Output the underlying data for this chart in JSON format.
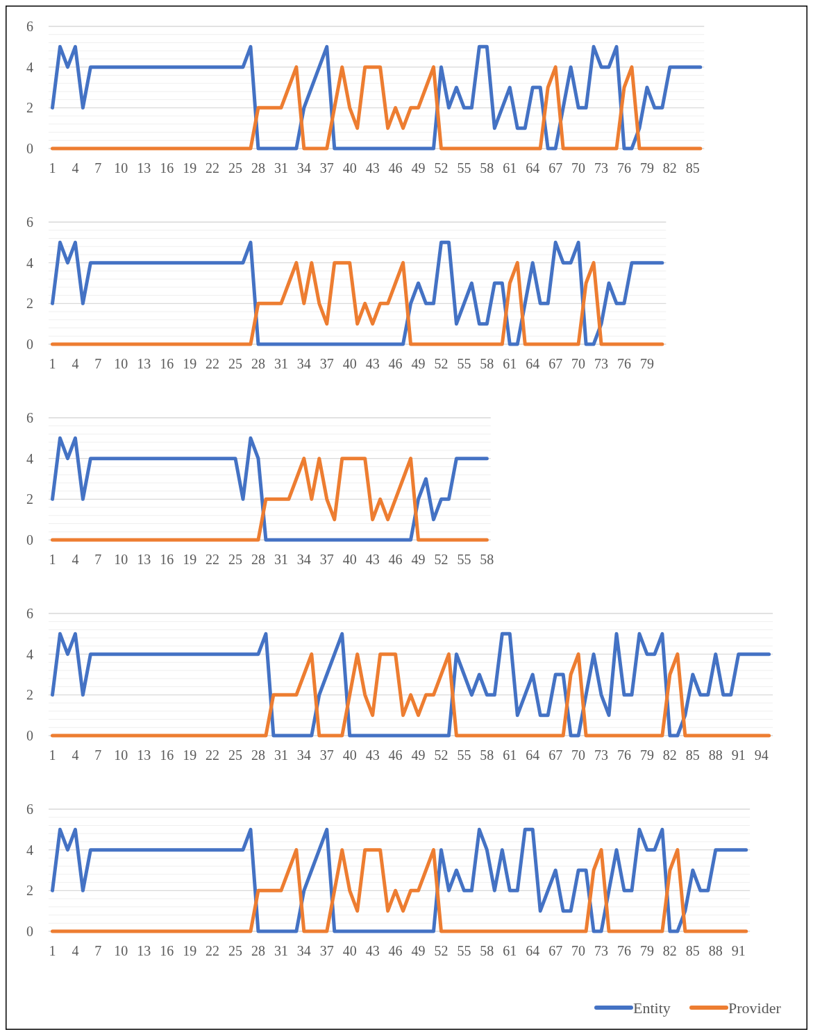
{
  "chart_data": [
    {
      "type": "line",
      "ylim": [
        0,
        6
      ],
      "yticks": [
        0,
        {
          "value": 0.4,
          "label": null
        },
        {
          "value": 0.8,
          "label": null
        },
        {
          "value": 1.2,
          "label": null
        },
        {
          "value": 1.6,
          "label": null
        },
        2,
        {
          "value": 2.4,
          "label": null
        },
        {
          "value": 2.8,
          "label": null
        },
        {
          "value": 3.2,
          "label": null
        },
        {
          "value": 3.6,
          "label": null
        },
        4,
        {
          "value": 4.4,
          "label": null
        },
        {
          "value": 4.8,
          "label": null
        },
        {
          "value": 5.2,
          "label": null
        },
        {
          "value": 5.6,
          "label": null
        },
        6
      ],
      "grid": "y",
      "categories": [
        "1",
        null,
        null,
        "4",
        null,
        null,
        "7",
        null,
        null,
        "10",
        null,
        null,
        "13",
        null,
        null,
        "16",
        null,
        null,
        "19",
        null,
        null,
        "22",
        null,
        null,
        "25",
        null,
        null,
        "28",
        null,
        null,
        "31",
        null,
        null,
        "34",
        null,
        null,
        "37",
        null,
        null,
        "40",
        null,
        null,
        "43",
        null,
        null,
        "46",
        null,
        null,
        "49",
        null,
        null,
        "52",
        null,
        null,
        "55",
        null,
        null,
        "58",
        null,
        null,
        "61",
        null,
        null,
        "64",
        null,
        null,
        "67",
        null,
        null,
        "70",
        null,
        null,
        "73",
        null,
        null,
        "76",
        null,
        null,
        "79",
        null,
        null,
        "82",
        null,
        null,
        "85",
        null
      ],
      "series": [
        {
          "color": "#4472c4",
          "values": [
            2,
            5,
            4,
            5,
            2,
            4,
            4,
            4,
            4,
            4,
            4,
            4,
            4,
            4,
            4,
            4,
            4,
            4,
            4,
            4,
            4,
            4,
            4,
            4,
            4,
            4,
            5,
            0,
            0,
            0,
            0,
            0,
            0,
            2,
            3,
            4,
            5,
            0,
            0,
            0,
            0,
            0,
            0,
            0,
            0,
            0,
            0,
            0,
            0,
            0,
            0,
            4,
            2,
            3,
            2,
            2,
            5,
            5,
            1,
            2,
            3,
            1,
            1,
            3,
            3,
            0,
            0,
            2,
            4,
            2,
            2,
            5,
            4,
            4,
            5,
            0,
            0,
            1,
            3,
            2,
            2,
            4,
            4,
            4,
            4,
            4
          ]
        },
        {
          "color": "#ed7d31",
          "values": [
            0,
            0,
            0,
            0,
            0,
            0,
            0,
            0,
            0,
            0,
            0,
            0,
            0,
            0,
            0,
            0,
            0,
            0,
            0,
            0,
            0,
            0,
            0,
            0,
            0,
            0,
            0,
            2,
            2,
            2,
            2,
            3,
            4,
            0,
            0,
            0,
            0,
            2,
            4,
            2,
            1,
            4,
            4,
            4,
            1,
            2,
            1,
            2,
            2,
            3,
            4,
            0,
            0,
            0,
            0,
            0,
            0,
            0,
            0,
            0,
            0,
            0,
            0,
            0,
            0,
            3,
            4,
            0,
            0,
            0,
            0,
            0,
            0,
            0,
            0,
            3,
            4,
            0,
            0,
            0,
            0,
            0,
            0,
            0,
            0,
            0
          ]
        }
      ]
    },
    {
      "type": "line",
      "ylim": [
        0,
        6
      ],
      "yticks": [
        0,
        {
          "value": 0.4,
          "label": null
        },
        {
          "value": 0.8,
          "label": null
        },
        {
          "value": 1.2,
          "label": null
        },
        {
          "value": 1.6,
          "label": null
        },
        2,
        {
          "value": 2.4,
          "label": null
        },
        {
          "value": 2.8,
          "label": null
        },
        {
          "value": 3.2,
          "label": null
        },
        {
          "value": 3.6,
          "label": null
        },
        4,
        {
          "value": 4.4,
          "label": null
        },
        {
          "value": 4.8,
          "label": null
        },
        {
          "value": 5.2,
          "label": null
        },
        {
          "value": 5.6,
          "label": null
        },
        6
      ],
      "grid": "y",
      "categories": [
        "1",
        null,
        null,
        "4",
        null,
        null,
        "7",
        null,
        null,
        "10",
        null,
        null,
        "13",
        null,
        null,
        "16",
        null,
        null,
        "19",
        null,
        null,
        "22",
        null,
        null,
        "25",
        null,
        null,
        "28",
        null,
        null,
        "31",
        null,
        null,
        "34",
        null,
        null,
        "37",
        null,
        null,
        "40",
        null,
        null,
        "43",
        null,
        null,
        "46",
        null,
        null,
        "49",
        null,
        null,
        "52",
        null,
        null,
        "55",
        null,
        null,
        "58",
        null,
        null,
        "61",
        null,
        null,
        "64",
        null,
        null,
        "67",
        null,
        null,
        "70",
        null,
        null,
        "73",
        null,
        null,
        "76",
        null,
        null,
        "79",
        null,
        null
      ],
      "series": [
        {
          "color": "#4472c4",
          "values": [
            2,
            5,
            4,
            5,
            2,
            4,
            4,
            4,
            4,
            4,
            4,
            4,
            4,
            4,
            4,
            4,
            4,
            4,
            4,
            4,
            4,
            4,
            4,
            4,
            4,
            4,
            5,
            0,
            0,
            0,
            0,
            0,
            0,
            0,
            0,
            0,
            0,
            0,
            0,
            0,
            0,
            0,
            0,
            0,
            0,
            0,
            0,
            2,
            3,
            2,
            2,
            5,
            5,
            1,
            2,
            3,
            1,
            1,
            3,
            3,
            0,
            0,
            2,
            4,
            2,
            2,
            5,
            4,
            4,
            5,
            0,
            0,
            1,
            3,
            2,
            2,
            4,
            4,
            4,
            4,
            4
          ]
        },
        {
          "color": "#ed7d31",
          "values": [
            0,
            0,
            0,
            0,
            0,
            0,
            0,
            0,
            0,
            0,
            0,
            0,
            0,
            0,
            0,
            0,
            0,
            0,
            0,
            0,
            0,
            0,
            0,
            0,
            0,
            0,
            0,
            2,
            2,
            2,
            2,
            3,
            4,
            2,
            4,
            2,
            1,
            4,
            4,
            4,
            1,
            2,
            1,
            2,
            2,
            3,
            4,
            0,
            0,
            0,
            0,
            0,
            0,
            0,
            0,
            0,
            0,
            0,
            0,
            0,
            3,
            4,
            0,
            0,
            0,
            0,
            0,
            0,
            0,
            0,
            3,
            4,
            0,
            0,
            0,
            0,
            0,
            0,
            0,
            0,
            0
          ]
        }
      ]
    },
    {
      "type": "line",
      "ylim": [
        0,
        6
      ],
      "yticks": [
        0,
        {
          "value": 0.4,
          "label": null
        },
        {
          "value": 0.8,
          "label": null
        },
        {
          "value": 1.2,
          "label": null
        },
        {
          "value": 1.6,
          "label": null
        },
        2,
        {
          "value": 2.4,
          "label": null
        },
        {
          "value": 2.8,
          "label": null
        },
        {
          "value": 3.2,
          "label": null
        },
        {
          "value": 3.6,
          "label": null
        },
        4,
        {
          "value": 4.4,
          "label": null
        },
        {
          "value": 4.8,
          "label": null
        },
        {
          "value": 5.2,
          "label": null
        },
        {
          "value": 5.6,
          "label": null
        },
        6
      ],
      "grid": "y",
      "categories": [
        "1",
        null,
        null,
        "4",
        null,
        null,
        "7",
        null,
        null,
        "10",
        null,
        null,
        "13",
        null,
        null,
        "16",
        null,
        null,
        "19",
        null,
        null,
        "22",
        null,
        null,
        "25",
        null,
        null,
        "28",
        null,
        null,
        "31",
        null,
        null,
        "34",
        null,
        null,
        "37",
        null,
        null,
        "40",
        null,
        null,
        "43",
        null,
        null,
        "46",
        null,
        null,
        "49",
        null,
        null,
        "52",
        null,
        null,
        "55",
        null,
        null,
        "58"
      ],
      "series": [
        {
          "color": "#4472c4",
          "values": [
            2,
            5,
            4,
            5,
            2,
            4,
            4,
            4,
            4,
            4,
            4,
            4,
            4,
            4,
            4,
            4,
            4,
            4,
            4,
            4,
            4,
            4,
            4,
            4,
            4,
            2,
            5,
            4,
            0,
            0,
            0,
            0,
            0,
            0,
            0,
            0,
            0,
            0,
            0,
            0,
            0,
            0,
            0,
            0,
            0,
            0,
            0,
            0,
            2,
            3,
            1,
            2,
            2,
            4,
            4,
            4,
            4,
            4
          ]
        },
        {
          "color": "#ed7d31",
          "values": [
            0,
            0,
            0,
            0,
            0,
            0,
            0,
            0,
            0,
            0,
            0,
            0,
            0,
            0,
            0,
            0,
            0,
            0,
            0,
            0,
            0,
            0,
            0,
            0,
            0,
            0,
            0,
            0,
            2,
            2,
            2,
            2,
            3,
            4,
            2,
            4,
            2,
            1,
            4,
            4,
            4,
            4,
            1,
            2,
            1,
            2,
            3,
            4,
            0,
            0,
            0,
            0,
            0,
            0,
            0,
            0,
            0,
            0
          ]
        }
      ]
    },
    {
      "type": "line",
      "ylim": [
        0,
        6
      ],
      "yticks": [
        0,
        {
          "value": 0.4,
          "label": null
        },
        {
          "value": 0.8,
          "label": null
        },
        {
          "value": 1.2,
          "label": null
        },
        {
          "value": 1.6,
          "label": null
        },
        2,
        {
          "value": 2.4,
          "label": null
        },
        {
          "value": 2.8,
          "label": null
        },
        {
          "value": 3.2,
          "label": null
        },
        {
          "value": 3.6,
          "label": null
        },
        4,
        {
          "value": 4.4,
          "label": null
        },
        {
          "value": 4.8,
          "label": null
        },
        {
          "value": 5.2,
          "label": null
        },
        {
          "value": 5.6,
          "label": null
        },
        6
      ],
      "grid": "y",
      "categories": [
        "1",
        null,
        null,
        "4",
        null,
        null,
        "7",
        null,
        null,
        "10",
        null,
        null,
        "13",
        null,
        null,
        "16",
        null,
        null,
        "19",
        null,
        null,
        "22",
        null,
        null,
        "25",
        null,
        null,
        "28",
        null,
        null,
        "31",
        null,
        null,
        "34",
        null,
        null,
        "37",
        null,
        null,
        "40",
        null,
        null,
        "43",
        null,
        null,
        "46",
        null,
        null,
        "49",
        null,
        null,
        "52",
        null,
        null,
        "55",
        null,
        null,
        "58",
        null,
        null,
        "61",
        null,
        null,
        "64",
        null,
        null,
        "67",
        null,
        null,
        "70",
        null,
        null,
        "73",
        null,
        null,
        "76",
        null,
        null,
        "79",
        null,
        null,
        "82",
        null,
        null,
        "85",
        null,
        null,
        "88",
        null,
        null,
        "91",
        null,
        null,
        "94",
        null
      ],
      "series": [
        {
          "color": "#4472c4",
          "values": [
            2,
            5,
            4,
            5,
            2,
            4,
            4,
            4,
            4,
            4,
            4,
            4,
            4,
            4,
            4,
            4,
            4,
            4,
            4,
            4,
            4,
            4,
            4,
            4,
            4,
            4,
            4,
            4,
            5,
            0,
            0,
            0,
            0,
            0,
            0,
            2,
            3,
            4,
            5,
            0,
            0,
            0,
            0,
            0,
            0,
            0,
            0,
            0,
            0,
            0,
            0,
            0,
            0,
            4,
            3,
            2,
            3,
            2,
            2,
            5,
            5,
            1,
            2,
            3,
            1,
            1,
            3,
            3,
            0,
            0,
            2,
            4,
            2,
            1,
            5,
            2,
            2,
            5,
            4,
            4,
            5,
            0,
            0,
            1,
            3,
            2,
            2,
            4,
            2,
            2,
            4,
            4,
            4,
            4,
            4
          ]
        },
        {
          "color": "#ed7d31",
          "values": [
            0,
            0,
            0,
            0,
            0,
            0,
            0,
            0,
            0,
            0,
            0,
            0,
            0,
            0,
            0,
            0,
            0,
            0,
            0,
            0,
            0,
            0,
            0,
            0,
            0,
            0,
            0,
            0,
            0,
            2,
            2,
            2,
            2,
            3,
            4,
            0,
            0,
            0,
            0,
            2,
            4,
            2,
            1,
            4,
            4,
            4,
            1,
            2,
            1,
            2,
            2,
            3,
            4,
            0,
            0,
            0,
            0,
            0,
            0,
            0,
            0,
            0,
            0,
            0,
            0,
            0,
            0,
            0,
            3,
            4,
            0,
            0,
            0,
            0,
            0,
            0,
            0,
            0,
            0,
            0,
            0,
            3,
            4,
            0,
            0,
            0,
            0,
            0,
            0,
            0,
            0,
            0,
            0,
            0,
            0
          ]
        }
      ]
    },
    {
      "type": "line",
      "ylim": [
        0,
        6
      ],
      "yticks": [
        0,
        {
          "value": 0.4,
          "label": null
        },
        {
          "value": 0.8,
          "label": null
        },
        {
          "value": 1.2,
          "label": null
        },
        {
          "value": 1.6,
          "label": null
        },
        2,
        {
          "value": 2.4,
          "label": null
        },
        {
          "value": 2.8,
          "label": null
        },
        {
          "value": 3.2,
          "label": null
        },
        {
          "value": 3.6,
          "label": null
        },
        4,
        {
          "value": 4.4,
          "label": null
        },
        {
          "value": 4.8,
          "label": null
        },
        {
          "value": 5.2,
          "label": null
        },
        {
          "value": 5.6,
          "label": null
        },
        6
      ],
      "grid": "y",
      "legend": "bottom right",
      "categories": [
        "1",
        null,
        null,
        "4",
        null,
        null,
        "7",
        null,
        null,
        "10",
        null,
        null,
        "13",
        null,
        null,
        "16",
        null,
        null,
        "19",
        null,
        null,
        "22",
        null,
        null,
        "25",
        null,
        null,
        "28",
        null,
        null,
        "31",
        null,
        null,
        "34",
        null,
        null,
        "37",
        null,
        null,
        "40",
        null,
        null,
        "43",
        null,
        null,
        "46",
        null,
        null,
        "49",
        null,
        null,
        "52",
        null,
        null,
        "55",
        null,
        null,
        "58",
        null,
        null,
        "61",
        null,
        null,
        "64",
        null,
        null,
        "67",
        null,
        null,
        "70",
        null,
        null,
        "73",
        null,
        null,
        "76",
        null,
        null,
        "79",
        null,
        null,
        "82",
        null,
        null,
        "85",
        null,
        null,
        "88",
        null,
        null,
        "91",
        null
      ],
      "series": [
        {
          "name": "Entity",
          "color": "#4472c4",
          "values": [
            2,
            5,
            4,
            5,
            2,
            4,
            4,
            4,
            4,
            4,
            4,
            4,
            4,
            4,
            4,
            4,
            4,
            4,
            4,
            4,
            4,
            4,
            4,
            4,
            4,
            4,
            5,
            0,
            0,
            0,
            0,
            0,
            0,
            2,
            3,
            4,
            5,
            0,
            0,
            0,
            0,
            0,
            0,
            0,
            0,
            0,
            0,
            0,
            0,
            0,
            0,
            4,
            2,
            3,
            2,
            2,
            5,
            4,
            2,
            4,
            2,
            2,
            5,
            5,
            1,
            2,
            3,
            1,
            1,
            3,
            3,
            0,
            0,
            2,
            4,
            2,
            2,
            5,
            4,
            4,
            5,
            0,
            0,
            1,
            3,
            2,
            2,
            4,
            4,
            4,
            4,
            4
          ]
        },
        {
          "name": "Provider",
          "color": "#ed7d31",
          "values": [
            0,
            0,
            0,
            0,
            0,
            0,
            0,
            0,
            0,
            0,
            0,
            0,
            0,
            0,
            0,
            0,
            0,
            0,
            0,
            0,
            0,
            0,
            0,
            0,
            0,
            0,
            0,
            2,
            2,
            2,
            2,
            3,
            4,
            0,
            0,
            0,
            0,
            2,
            4,
            2,
            1,
            4,
            4,
            4,
            1,
            2,
            1,
            2,
            2,
            3,
            4,
            0,
            0,
            0,
            0,
            0,
            0,
            0,
            0,
            0,
            0,
            0,
            0,
            0,
            0,
            0,
            0,
            0,
            0,
            0,
            0,
            3,
            4,
            0,
            0,
            0,
            0,
            0,
            0,
            0,
            0,
            3,
            4,
            0,
            0,
            0,
            0,
            0,
            0,
            0,
            0,
            0
          ]
        }
      ]
    }
  ]
}
